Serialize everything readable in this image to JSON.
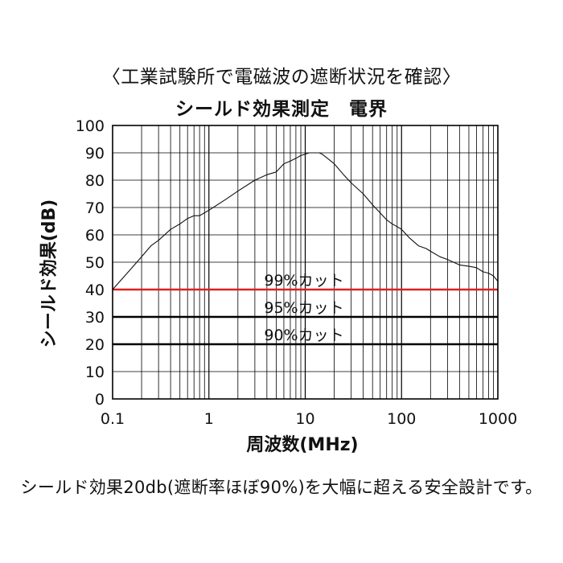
{
  "caption": "〈工業試験所で電磁波の遮断状況を確認〉",
  "footer": "シールド効果20db(遮断率ほぼ90%)を大幅に超える安全設計です。",
  "chart_data": {
    "type": "line",
    "title": "シールド効果測定　電界",
    "xlabel": "周波数(MHz)",
    "ylabel": "シールド効果(dB)",
    "xscale": "log",
    "xlim": [
      0.1,
      1000
    ],
    "ylim": [
      0,
      100
    ],
    "grid": true,
    "x_ticks": [
      "0.1",
      "1",
      "10",
      "100",
      "1000"
    ],
    "y_ticks": [
      "0",
      "10",
      "20",
      "30",
      "40",
      "50",
      "60",
      "70",
      "80",
      "90",
      "100"
    ],
    "series": [
      {
        "x": [
          0.1,
          0.15,
          0.2,
          0.25,
          0.3,
          0.4,
          0.5,
          0.6,
          0.7,
          0.8,
          1,
          1.5,
          2,
          3,
          4,
          5,
          6,
          7,
          8,
          9,
          10,
          11,
          12,
          13,
          14,
          15,
          17,
          20,
          25,
          30,
          40,
          50,
          60,
          70,
          80,
          90,
          100,
          120,
          150,
          180,
          200,
          250,
          300,
          400,
          500,
          600,
          700,
          800,
          900,
          1000
        ],
        "values": [
          40,
          47,
          52,
          56,
          58,
          62,
          64,
          66,
          67,
          67,
          69,
          73,
          76,
          80,
          82,
          83,
          86,
          87,
          88,
          89,
          89.5,
          90,
          90,
          90,
          90,
          89.5,
          88,
          86,
          82,
          79,
          75,
          71,
          68,
          65.5,
          64,
          63,
          62,
          59,
          56,
          55,
          54,
          52,
          51,
          49,
          48.5,
          48,
          46.5,
          46,
          45,
          43
        ]
      }
    ],
    "thresholds": [
      {
        "label": "99%カット",
        "y": 40,
        "color": "#e02020"
      },
      {
        "label": "95%カット",
        "y": 30,
        "color": "#000000"
      },
      {
        "label": "90%カット",
        "y": 20,
        "color": "#000000"
      }
    ]
  }
}
